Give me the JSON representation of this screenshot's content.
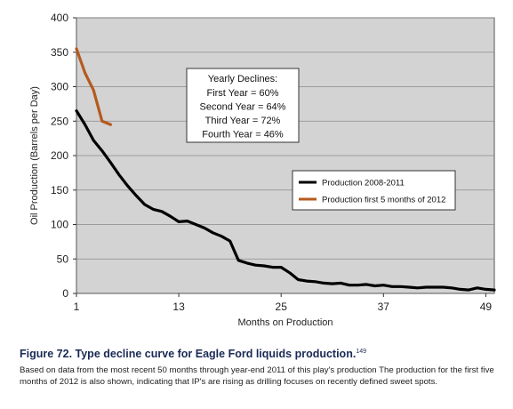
{
  "chart_data": {
    "type": "line",
    "ylabel": "Oil Production (Barrels per Day)",
    "xlabel": "Months on Production",
    "ylim": [
      0,
      400
    ],
    "xlim": [
      1,
      50
    ],
    "x_ticks": [
      1,
      13,
      25,
      37,
      49
    ],
    "y_ticks": [
      0,
      50,
      100,
      150,
      200,
      250,
      300,
      350,
      400
    ],
    "grid": "horizontal",
    "background": "#d3d3d3",
    "legend_position": "right",
    "series": [
      {
        "name": "Production 2008-2011",
        "color": "#000000",
        "x": [
          1,
          2,
          3,
          4,
          5,
          6,
          7,
          8,
          9,
          10,
          11,
          12,
          13,
          14,
          15,
          16,
          17,
          18,
          19,
          20,
          21,
          22,
          23,
          24,
          25,
          26,
          27,
          28,
          29,
          30,
          31,
          32,
          33,
          34,
          35,
          36,
          37,
          38,
          39,
          40,
          41,
          42,
          43,
          44,
          45,
          46,
          47,
          48,
          49,
          50
        ],
        "values": [
          265,
          245,
          222,
          207,
          190,
          172,
          156,
          142,
          129,
          122,
          119,
          112,
          104,
          105,
          100,
          95,
          88,
          83,
          76,
          48,
          44,
          41,
          40,
          38,
          38,
          30,
          20,
          18,
          17,
          15,
          14,
          15,
          12,
          12,
          13,
          11,
          12,
          10,
          10,
          9,
          8,
          9,
          9,
          9,
          8,
          6,
          5,
          8,
          6,
          5
        ]
      },
      {
        "name": "Production first 5 months of 2012",
        "color": "#b55a1e",
        "x": [
          1,
          2,
          3,
          4,
          5
        ],
        "values": [
          355,
          320,
          295,
          250,
          245
        ]
      }
    ],
    "annotation": {
      "title": "Yearly Declines:",
      "lines": [
        "First Year = 60%",
        "Second Year =  64%",
        "Third Year = 72%",
        "Fourth Year = 46%"
      ]
    }
  },
  "caption": {
    "title": "Figure 72. Type decline curve for Eagle Ford liquids production.",
    "footnote": "149",
    "body": "Based on data from the most recent 50 months through year-end 2011 of this play's production The production for the first five months of 2012 is also shown, indicating that IP's are rising as drilling focuses on recently defined sweet spots."
  }
}
